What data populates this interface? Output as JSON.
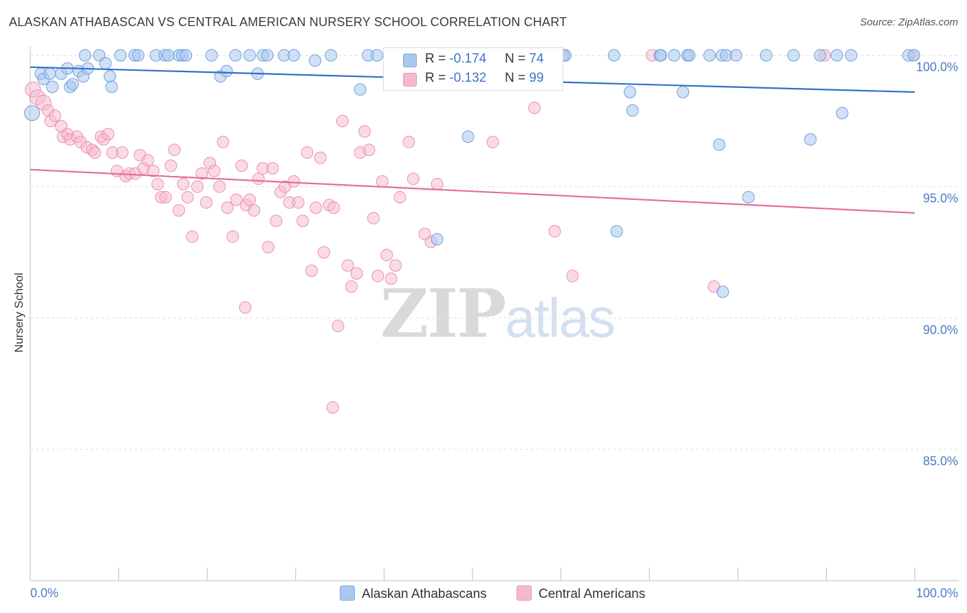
{
  "title": "ALASKAN ATHABASCAN VS CENTRAL AMERICAN NURSERY SCHOOL CORRELATION CHART",
  "source": "Source: ZipAtlas.com",
  "watermark": {
    "zip": "ZIP",
    "atlas": "atlas"
  },
  "legend": {
    "blue": {
      "r_label": "R = ",
      "r_value": "-0.174",
      "n_label": "N = ",
      "n_value": "74"
    },
    "pink": {
      "r_label": "R = ",
      "r_value": "-0.132",
      "n_label": "N = ",
      "n_value": "99"
    }
  },
  "colors": {
    "blue": "#a9c8ee",
    "blue_line": "#2d6fc9",
    "pink": "#f6b8cc",
    "pink_line": "#e46d96",
    "tick": "#4a7cc7"
  },
  "chart_data": {
    "type": "scatter",
    "title": "ALASKAN ATHABASCAN VS CENTRAL AMERICAN NURSERY SCHOOL CORRELATION CHART",
    "xlabel": "",
    "ylabel": "Nursery School",
    "xlim": [
      0,
      100
    ],
    "ylim": [
      80.5,
      100.5
    ],
    "x_ticks": [
      0,
      10,
      20,
      30,
      40,
      50,
      60,
      70,
      80,
      90,
      100
    ],
    "x_tick_labels": [
      {
        "x": 0,
        "label": "0.0%"
      },
      {
        "x": 100,
        "label": "100.0%"
      }
    ],
    "y_ticks": [
      {
        "y": 100,
        "label": "100.0%"
      },
      {
        "y": 95,
        "label": "95.0%"
      },
      {
        "y": 90,
        "label": "90.0%"
      },
      {
        "y": 85,
        "label": "85.0%"
      }
    ],
    "series": [
      {
        "name": "Alaskan Athabascans",
        "color": "#a9c8ee",
        "trend": {
          "x": [
            0,
            100
          ],
          "y": [
            99.55,
            98.6
          ]
        },
        "points": [
          [
            0.2,
            97.8
          ],
          [
            1.2,
            99.3
          ],
          [
            1.5,
            99.1
          ],
          [
            2.2,
            99.3
          ],
          [
            2.5,
            98.8
          ],
          [
            3.5,
            99.3
          ],
          [
            4.2,
            99.5
          ],
          [
            4.5,
            98.8
          ],
          [
            4.8,
            98.9
          ],
          [
            5.5,
            99.4
          ],
          [
            6.0,
            99.2
          ],
          [
            6.5,
            99.5
          ],
          [
            6.2,
            100
          ],
          [
            7.8,
            100
          ],
          [
            8.5,
            99.7
          ],
          [
            9.0,
            99.2
          ],
          [
            9.2,
            98.8
          ],
          [
            10.2,
            100
          ],
          [
            11.8,
            100
          ],
          [
            12.2,
            100
          ],
          [
            14.2,
            100
          ],
          [
            15.2,
            100
          ],
          [
            15.6,
            100
          ],
          [
            16.8,
            100
          ],
          [
            17.2,
            100
          ],
          [
            17.6,
            100
          ],
          [
            20.5,
            100
          ],
          [
            21.5,
            99.2
          ],
          [
            22.2,
            99.4
          ],
          [
            23.2,
            100
          ],
          [
            24.8,
            100
          ],
          [
            25.7,
            99.3
          ],
          [
            26.3,
            100
          ],
          [
            26.8,
            100
          ],
          [
            28.7,
            100
          ],
          [
            29.8,
            100
          ],
          [
            32.2,
            99.8
          ],
          [
            34.0,
            100
          ],
          [
            37.3,
            98.7
          ],
          [
            38.2,
            100
          ],
          [
            39.2,
            100
          ],
          [
            41.3,
            100
          ],
          [
            49.5,
            96.9
          ],
          [
            59.3,
            100
          ],
          [
            60.3,
            100
          ],
          [
            66.0,
            100
          ],
          [
            67.8,
            98.6
          ],
          [
            68.1,
            97.9
          ],
          [
            71.2,
            100
          ],
          [
            71.3,
            100
          ],
          [
            72.8,
            100
          ],
          [
            73.8,
            98.6
          ],
          [
            74.3,
            100
          ],
          [
            76.8,
            100
          ],
          [
            77.9,
            96.6
          ],
          [
            78.2,
            100
          ],
          [
            78.7,
            100
          ],
          [
            79.8,
            100
          ],
          [
            83.2,
            100
          ],
          [
            86.3,
            100
          ],
          [
            88.2,
            96.8
          ],
          [
            89.3,
            100
          ],
          [
            91.2,
            100
          ],
          [
            91.8,
            97.8
          ],
          [
            92.8,
            100
          ],
          [
            99.3,
            100
          ],
          [
            99.9,
            100
          ],
          [
            59.3,
            100
          ],
          [
            46.0,
            93.0
          ],
          [
            66.3,
            93.3
          ],
          [
            81.2,
            94.6
          ],
          [
            78.3,
            91.0
          ],
          [
            60.5,
            100
          ],
          [
            74.5,
            100
          ]
        ]
      },
      {
        "name": "Central Americans",
        "color": "#f6b8cc",
        "trend": {
          "x": [
            0,
            100
          ],
          "y": [
            95.65,
            94.0
          ]
        },
        "points": [
          [
            0.3,
            98.7
          ],
          [
            0.8,
            98.4
          ],
          [
            1.5,
            98.2
          ],
          [
            2.0,
            97.9
          ],
          [
            2.3,
            97.5
          ],
          [
            2.8,
            97.7
          ],
          [
            3.5,
            97.3
          ],
          [
            3.7,
            96.9
          ],
          [
            4.2,
            97.0
          ],
          [
            4.5,
            96.8
          ],
          [
            5.3,
            96.9
          ],
          [
            5.7,
            96.7
          ],
          [
            6.4,
            96.5
          ],
          [
            7.0,
            96.4
          ],
          [
            7.3,
            96.3
          ],
          [
            8.0,
            96.9
          ],
          [
            8.3,
            96.8
          ],
          [
            8.8,
            97.0
          ],
          [
            9.3,
            96.3
          ],
          [
            9.8,
            95.6
          ],
          [
            10.4,
            96.3
          ],
          [
            10.8,
            95.4
          ],
          [
            11.2,
            95.5
          ],
          [
            11.9,
            95.5
          ],
          [
            12.4,
            96.2
          ],
          [
            12.8,
            95.7
          ],
          [
            13.3,
            96.0
          ],
          [
            13.9,
            95.6
          ],
          [
            14.4,
            95.1
          ],
          [
            14.8,
            94.6
          ],
          [
            15.3,
            94.6
          ],
          [
            15.9,
            95.8
          ],
          [
            16.3,
            96.4
          ],
          [
            16.8,
            94.1
          ],
          [
            17.3,
            95.1
          ],
          [
            17.8,
            94.6
          ],
          [
            18.3,
            93.1
          ],
          [
            18.9,
            95.0
          ],
          [
            19.4,
            95.5
          ],
          [
            19.9,
            94.4
          ],
          [
            20.3,
            95.9
          ],
          [
            20.8,
            95.6
          ],
          [
            21.4,
            95.0
          ],
          [
            21.8,
            96.7
          ],
          [
            22.3,
            94.2
          ],
          [
            22.9,
            93.1
          ],
          [
            23.3,
            94.5
          ],
          [
            23.9,
            95.8
          ],
          [
            24.4,
            94.3
          ],
          [
            24.8,
            94.5
          ],
          [
            25.3,
            94.1
          ],
          [
            25.8,
            95.3
          ],
          [
            26.3,
            95.7
          ],
          [
            26.9,
            92.7
          ],
          [
            27.4,
            95.7
          ],
          [
            27.8,
            93.7
          ],
          [
            28.3,
            94.8
          ],
          [
            28.8,
            95.0
          ],
          [
            29.3,
            94.4
          ],
          [
            29.8,
            95.2
          ],
          [
            30.3,
            94.4
          ],
          [
            30.8,
            93.7
          ],
          [
            31.3,
            96.3
          ],
          [
            31.8,
            91.8
          ],
          [
            32.3,
            94.2
          ],
          [
            32.8,
            96.1
          ],
          [
            33.2,
            92.5
          ],
          [
            33.8,
            94.3
          ],
          [
            34.3,
            94.2
          ],
          [
            34.8,
            89.7
          ],
          [
            35.3,
            97.5
          ],
          [
            35.9,
            92.0
          ],
          [
            36.3,
            91.2
          ],
          [
            36.9,
            91.7
          ],
          [
            37.3,
            96.3
          ],
          [
            37.8,
            97.1
          ],
          [
            38.3,
            96.4
          ],
          [
            38.8,
            93.8
          ],
          [
            39.3,
            91.6
          ],
          [
            39.8,
            95.2
          ],
          [
            40.3,
            92.4
          ],
          [
            40.8,
            91.5
          ],
          [
            41.3,
            92.0
          ],
          [
            41.8,
            94.6
          ],
          [
            42.8,
            96.7
          ],
          [
            43.3,
            95.3
          ],
          [
            45.3,
            92.9
          ],
          [
            46.0,
            95.1
          ],
          [
            44.6,
            93.2
          ],
          [
            52.3,
            96.7
          ],
          [
            59.3,
            93.3
          ],
          [
            61.3,
            91.6
          ],
          [
            77.3,
            91.2
          ],
          [
            34.2,
            86.6
          ],
          [
            24.3,
            90.4
          ],
          [
            57.0,
            98.0
          ],
          [
            99.9,
            100
          ],
          [
            89.8,
            100
          ],
          [
            70.3,
            100
          ],
          [
            60.2,
            100
          ]
        ]
      }
    ]
  },
  "bottom_legend": {
    "blue_label": "Alaskan Athabascans",
    "pink_label": "Central Americans"
  }
}
